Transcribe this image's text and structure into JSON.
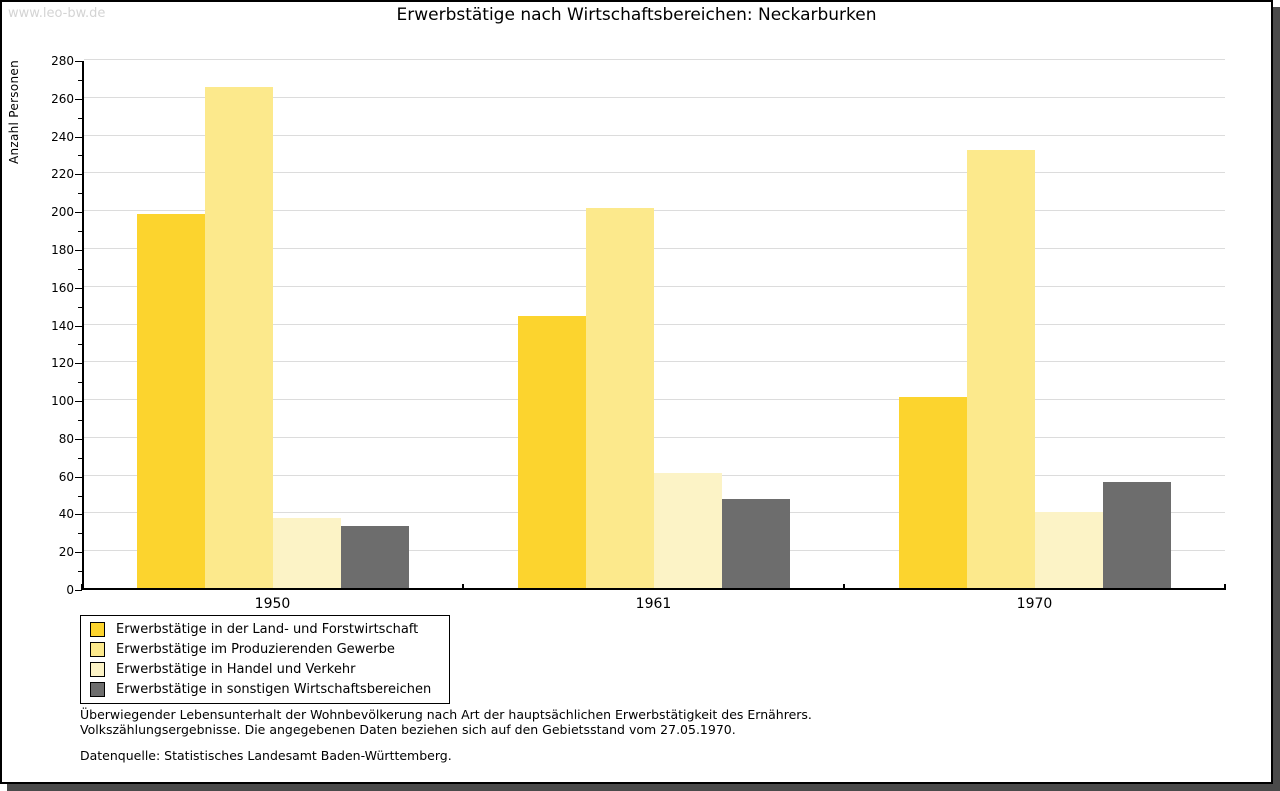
{
  "watermark": "www.leo-bw.de",
  "chart_data": {
    "type": "bar",
    "title": "Erwerbstätige nach Wirtschaftsbereichen: Neckarburken",
    "ylabel": "Anzahl Personen",
    "xlabel": "",
    "ylim": [
      0,
      280
    ],
    "ytick_step": 20,
    "yminor_step": 10,
    "grid": true,
    "legend_position": "bottom-left",
    "categories": [
      "1950",
      "1961",
      "1970"
    ],
    "series": [
      {
        "name": "Erwerbstätige in der Land- und Forstwirtschaft",
        "color": "#fcd42e",
        "values": [
          198,
          144,
          101
        ]
      },
      {
        "name": "Erwerbstätige im Produzierenden Gewerbe",
        "color": "#fce98c",
        "values": [
          265,
          201,
          232
        ]
      },
      {
        "name": "Erwerbstätige in Handel und Verkehr",
        "color": "#fcf3c6",
        "values": [
          37,
          61,
          40
        ]
      },
      {
        "name": "Erwerbstätige in sonstigen Wirtschaftsbereichen",
        "color": "#6d6d6d",
        "values": [
          33,
          47,
          56
        ]
      }
    ]
  },
  "footnotes": {
    "line1": "Überwiegender Lebensunterhalt der Wohnbevölkerung nach Art der hauptsächlichen Erwerbstätigkeit des Ernährers.",
    "line2": "Volkszählungsergebnisse. Die angegebenen Daten beziehen sich auf den Gebietsstand vom 27.05.1970.",
    "source": "Datenquelle: Statistisches Landesamt Baden-Württemberg."
  },
  "colors": {
    "grid": "#dcdcdc",
    "axis": "#000000",
    "shadow": "#4a4a4a",
    "watermark": "#d4d4d4"
  }
}
